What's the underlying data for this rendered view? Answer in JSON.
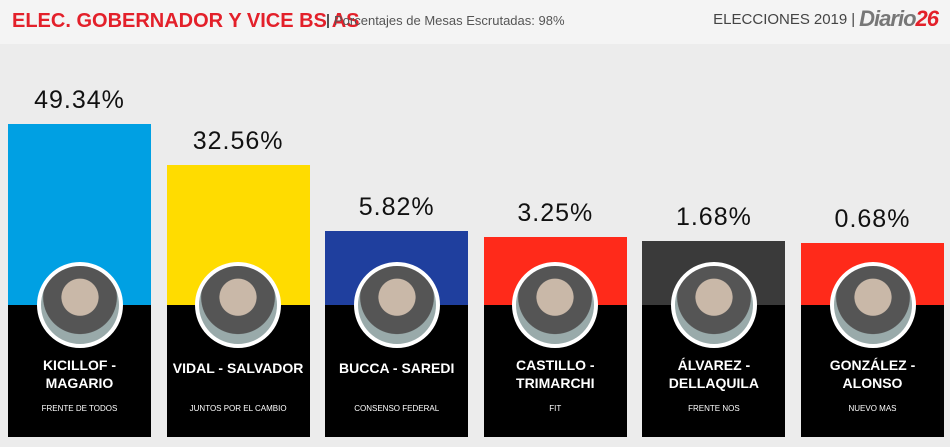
{
  "chart_data": {
    "type": "bar",
    "title": "ELEC. GOBERNADOR Y VICE BS AS",
    "subtitle": "Porcentajes de Mesas Escrutadas: 98%",
    "header_label": "ELECCIONES",
    "header_year": "2019",
    "logo": {
      "text": "Diario",
      "number": "26"
    },
    "categories": [
      "KICILLOF -\nMAGARIO",
      "VIDAL - SALVADOR",
      "BUCCA - SAREDI",
      "CASTILLO -\nTRIMARCHI",
      "ÁLVAREZ -\nDELLAQUILA",
      "GONZÁLEZ -\nALONSO"
    ],
    "parties": [
      "FRENTE DE TODOS",
      "JUNTOS POR EL CAMBIO",
      "CONSENSO FEDERAL",
      "FIT",
      "FRENTE NOS",
      "NUEVO MAS"
    ],
    "values": [
      49.34,
      32.56,
      5.82,
      3.25,
      1.68,
      0.68
    ],
    "value_labels": [
      "49.34%",
      "32.56%",
      "5.82%",
      "3.25%",
      "1.68%",
      "0.68%"
    ],
    "colors": [
      "#00a0e3",
      "#ffdc00",
      "#1f3f9e",
      "#ff2a1a",
      "#3a3a3a",
      "#ff2a1a"
    ]
  }
}
